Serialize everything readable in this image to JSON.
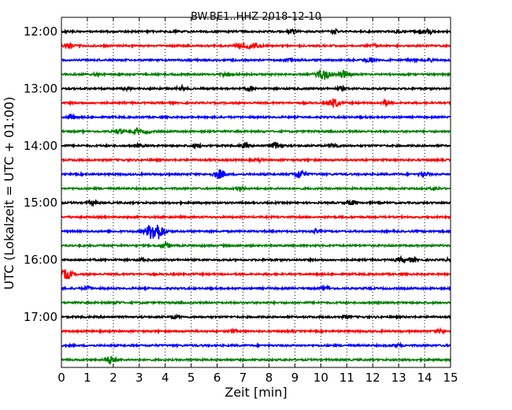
{
  "chart_data": {
    "type": "line",
    "title": "BW.BE1..HHZ 2018-12-10",
    "xlabel": "Zeit  [min]",
    "ylabel": "UTC (Lokalzeit = UTC + 01:00)",
    "xlim": [
      0,
      15
    ],
    "x_ticks": [
      "0",
      "1",
      "2",
      "3",
      "4",
      "5",
      "6",
      "7",
      "8",
      "9",
      "10",
      "11",
      "12",
      "13",
      "14",
      "15"
    ],
    "y_ticks": [
      {
        "label": "12:00",
        "row": 0
      },
      {
        "label": "13:00",
        "row": 4
      },
      {
        "label": "14:00",
        "row": 8
      },
      {
        "label": "15:00",
        "row": 12
      },
      {
        "label": "16:00",
        "row": 16
      },
      {
        "label": "17:00",
        "row": 20
      }
    ],
    "grid": "vertical dotted",
    "row_colors": [
      "#000000",
      "#ff0000",
      "#0000ff",
      "#008000"
    ],
    "traces": [
      {
        "start": "12:00",
        "events": [
          [
            8.9,
            0.6
          ],
          [
            10.5,
            0.5
          ],
          [
            13.0,
            0.4
          ],
          [
            13.9,
            0.6
          ],
          [
            14.2,
            0.5
          ]
        ]
      },
      {
        "start": "12:15",
        "events": [
          [
            0.3,
            0.8
          ],
          [
            6.9,
            0.7
          ],
          [
            7.3,
            0.8
          ],
          [
            7.6,
            0.5
          ],
          [
            12.1,
            0.4
          ]
        ]
      },
      {
        "start": "12:30",
        "events": [
          [
            8.7,
            0.5
          ],
          [
            11.9,
            0.6
          ],
          [
            13.5,
            0.4
          ],
          [
            14.2,
            0.4
          ]
        ]
      },
      {
        "start": "12:45",
        "events": [
          [
            1.4,
            0.4
          ],
          [
            6.3,
            0.4
          ],
          [
            10.1,
            1.5
          ],
          [
            10.9,
            1.2
          ]
        ]
      },
      {
        "start": "13:00",
        "events": [
          [
            2.5,
            0.4
          ],
          [
            4.6,
            0.7
          ],
          [
            7.3,
            0.5
          ],
          [
            10.8,
            0.5
          ]
        ]
      },
      {
        "start": "13:15",
        "events": [
          [
            10.5,
            1.2
          ],
          [
            12.5,
            0.7
          ]
        ]
      },
      {
        "start": "13:30",
        "events": [
          [
            0.4,
            0.6
          ]
        ]
      },
      {
        "start": "13:45",
        "events": [
          [
            2.2,
            0.6
          ],
          [
            2.9,
            0.6
          ],
          [
            3.3,
            0.4
          ]
        ]
      },
      {
        "start": "14:00",
        "events": [
          [
            3.0,
            0.4
          ],
          [
            5.2,
            0.5
          ],
          [
            7.1,
            0.6
          ],
          [
            8.3,
            1.0
          ],
          [
            10.5,
            0.6
          ]
        ]
      },
      {
        "start": "14:15",
        "events": [
          [
            7.6,
            0.3
          ]
        ]
      },
      {
        "start": "14:30",
        "events": [
          [
            6.1,
            1.3
          ],
          [
            9.2,
            1.2
          ],
          [
            14.0,
            0.6
          ]
        ]
      },
      {
        "start": "14:45",
        "events": [
          [
            6.9,
            0.5
          ],
          [
            14.4,
            0.4
          ]
        ]
      },
      {
        "start": "15:00",
        "events": [
          [
            1.2,
            0.5
          ],
          [
            11.2,
            0.6
          ]
        ]
      },
      {
        "start": "15:15",
        "events": []
      },
      {
        "start": "15:30",
        "events": [
          [
            3.6,
            2.8
          ],
          [
            9.8,
            0.4
          ]
        ]
      },
      {
        "start": "15:45",
        "events": [
          [
            4.0,
            0.7
          ]
        ]
      },
      {
        "start": "16:00",
        "events": [
          [
            3.1,
            0.4
          ],
          [
            13.1,
            0.6
          ],
          [
            13.5,
            0.6
          ],
          [
            15.0,
            0.5
          ]
        ]
      },
      {
        "start": "16:15",
        "events": [
          [
            0.2,
            1.3
          ]
        ]
      },
      {
        "start": "16:30",
        "events": [
          [
            1.0,
            0.5
          ],
          [
            10.2,
            0.6
          ]
        ]
      },
      {
        "start": "16:45",
        "events": [
          [
            2.1,
            0.3
          ]
        ]
      },
      {
        "start": "17:00",
        "events": [
          [
            4.4,
            0.4
          ],
          [
            11.0,
            0.4
          ]
        ]
      },
      {
        "start": "17:15",
        "events": [
          [
            6.6,
            0.4
          ],
          [
            14.6,
            0.5
          ]
        ]
      },
      {
        "start": "17:30",
        "events": [
          [
            13.0,
            0.4
          ]
        ]
      },
      {
        "start": "17:45",
        "events": [
          [
            1.9,
            1.0
          ]
        ]
      }
    ]
  }
}
